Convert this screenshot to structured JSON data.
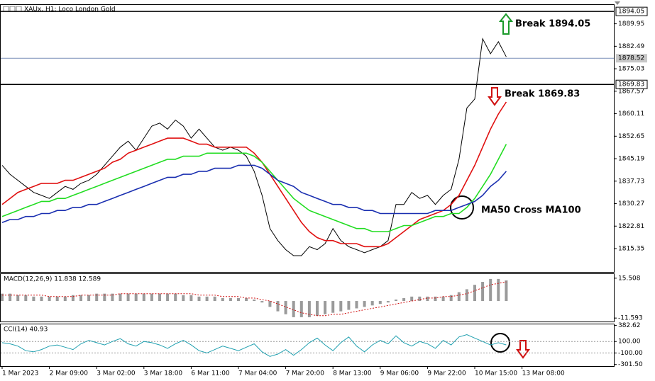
{
  "chart_data": [
    {
      "type": "line",
      "title": "XAUx, H1: Loco London Gold",
      "ylim": [
        1807.6,
        1896.2
      ],
      "yticks": [
        1889.95,
        1882.49,
        1875.03,
        1867.57,
        1860.11,
        1852.65,
        1845.19,
        1837.73,
        1830.27,
        1822.81,
        1815.35
      ],
      "break_levels": [
        1894.05,
        1869.83
      ],
      "last_price": 1878.52,
      "annotations": [
        "Break 1894.05",
        "Break 1869.83",
        "MA50 Cross MA100"
      ],
      "series": [
        {
          "color": "#000000",
          "values": [
            1843,
            1840,
            1838,
            1836,
            1834,
            1833,
            1832,
            1834,
            1836,
            1835,
            1837,
            1838,
            1840,
            1843,
            1846,
            1849,
            1851,
            1848,
            1852,
            1856,
            1857,
            1855,
            1858,
            1856,
            1852,
            1855,
            1852,
            1849,
            1848,
            1849,
            1848,
            1846,
            1841,
            1833,
            1822,
            1818,
            1815,
            1813,
            1813,
            1816,
            1815,
            1817,
            1822,
            1818,
            1816,
            1815,
            1814,
            1815,
            1816,
            1818,
            1830,
            1830,
            1834,
            1832,
            1833,
            1830,
            1833,
            1835,
            1845,
            1862,
            1865,
            1885,
            1880,
            1884,
            1879,
            null,
            null,
            null,
            null,
            null,
            null,
            null
          ]
        },
        {
          "color": "#e01010",
          "values": [
            1830,
            1832,
            1834,
            1835,
            1836,
            1837,
            1837,
            1837,
            1838,
            1838,
            1839,
            1840,
            1841,
            1842,
            1844,
            1845,
            1847,
            1848,
            1849,
            1850,
            1851,
            1852,
            1852,
            1852,
            1851,
            1850,
            1850,
            1849,
            1849,
            1849,
            1849,
            1849,
            1847,
            1844,
            1840,
            1836,
            1832,
            1828,
            1824,
            1821,
            1819,
            1818,
            1818,
            1817,
            1817,
            1817,
            1816,
            1816,
            1816,
            1817,
            1819,
            1821,
            1823,
            1825,
            1826,
            1827,
            1828,
            1830,
            1833,
            1838,
            1843,
            1849,
            1855,
            1860,
            1864,
            null,
            null,
            null,
            null,
            null,
            null,
            null
          ]
        },
        {
          "color": "#22dd22",
          "values": [
            1826,
            1827,
            1828,
            1829,
            1830,
            1831,
            1831,
            1832,
            1832,
            1833,
            1834,
            1835,
            1836,
            1837,
            1838,
            1839,
            1840,
            1841,
            1842,
            1843,
            1844,
            1845,
            1845,
            1846,
            1846,
            1846,
            1847,
            1847,
            1847,
            1847,
            1847,
            1847,
            1846,
            1844,
            1841,
            1838,
            1835,
            1832,
            1830,
            1828,
            1827,
            1826,
            1825,
            1824,
            1823,
            1822,
            1822,
            1821,
            1821,
            1821,
            1822,
            1823,
            1823,
            1824,
            1825,
            1826,
            1826,
            1827,
            1827,
            1829,
            1832,
            1836,
            1840,
            1845,
            1850,
            null,
            null,
            null,
            null,
            null,
            null,
            null
          ]
        },
        {
          "color": "#1a2fb0",
          "values": [
            1824,
            1825,
            1825,
            1826,
            1826,
            1827,
            1827,
            1828,
            1828,
            1829,
            1829,
            1830,
            1830,
            1831,
            1832,
            1833,
            1834,
            1835,
            1836,
            1837,
            1838,
            1839,
            1839,
            1840,
            1840,
            1841,
            1841,
            1842,
            1842,
            1842,
            1843,
            1843,
            1843,
            1842,
            1840,
            1838,
            1837,
            1836,
            1834,
            1833,
            1832,
            1831,
            1830,
            1830,
            1829,
            1829,
            1828,
            1828,
            1827,
            1827,
            1827,
            1827,
            1827,
            1827,
            1827,
            1828,
            1828,
            1828,
            1829,
            1830,
            1831,
            1833,
            1836,
            1838,
            1841,
            null,
            null,
            null,
            null,
            null,
            null,
            null
          ]
        }
      ]
    },
    {
      "type": "bar",
      "title": "MACD(12,26,9) 11.838 12.589",
      "ylim": [
        -13.93,
        18.31
      ],
      "yticks": [
        15.508,
        -11.593
      ],
      "color": "#9a9a9a",
      "signal_color": "#d01010",
      "values": [
        5,
        5,
        4,
        4,
        3,
        3,
        3,
        3,
        3,
        4,
        4,
        4,
        5,
        5,
        5,
        5,
        5,
        5,
        5,
        5,
        5,
        5,
        5,
        4,
        4,
        3,
        3,
        3,
        2,
        2,
        2,
        2,
        1,
        -1,
        -4,
        -7,
        -9,
        -11,
        -11,
        -11,
        -10,
        -9,
        -8,
        -7,
        -6,
        -5,
        -4,
        -3,
        -2,
        -1,
        1,
        2,
        3,
        3,
        3,
        3,
        3,
        4,
        6,
        8,
        11,
        13,
        15,
        15,
        14,
        null,
        null,
        null,
        null,
        null,
        null,
        null
      ],
      "signal": [
        4,
        4,
        4,
        4,
        4,
        4,
        3,
        3,
        3,
        3,
        4,
        4,
        4,
        4,
        4,
        5,
        5,
        5,
        5,
        5,
        5,
        5,
        5,
        5,
        5,
        4,
        4,
        4,
        3,
        3,
        3,
        2,
        2,
        1,
        0,
        -2,
        -4,
        -6,
        -8,
        -9,
        -10,
        -10,
        -9,
        -9,
        -8,
        -7,
        -6,
        -5,
        -4,
        -3,
        -2,
        -1,
        0,
        1,
        2,
        2,
        3,
        3,
        4,
        5,
        7,
        9,
        11,
        12,
        13,
        null,
        null,
        null,
        null,
        null,
        null,
        null
      ]
    },
    {
      "type": "line",
      "title": "CCI(14) 40.93",
      "ylim": [
        -330,
        400
      ],
      "yticks": [
        382.62,
        {
          "value": 100,
          "label": "100.00"
        },
        {
          "value": -100,
          "label": "-100.00"
        },
        {
          "value": -301.5,
          "label": "-301.50"
        }
      ],
      "series": [
        {
          "color": "#20a0b0",
          "values": [
            80,
            60,
            20,
            -60,
            -80,
            -40,
            20,
            40,
            0,
            -40,
            60,
            120,
            80,
            40,
            100,
            150,
            60,
            20,
            100,
            80,
            40,
            -20,
            60,
            120,
            40,
            -60,
            -100,
            -40,
            20,
            -20,
            -60,
            0,
            60,
            -80,
            -160,
            -120,
            -40,
            -140,
            -40,
            80,
            160,
            40,
            -60,
            80,
            180,
            20,
            -80,
            40,
            120,
            60,
            200,
            80,
            20,
            100,
            60,
            -20,
            120,
            40,
            180,
            220,
            160,
            100,
            40,
            80,
            40.93,
            null,
            null,
            null,
            null,
            null,
            null,
            null
          ]
        }
      ],
      "categories": [
        "1 Mar 2023",
        null,
        null,
        null,
        null,
        null,
        "2 Mar 09:00",
        null,
        null,
        null,
        null,
        null,
        "3 Mar 02:00",
        null,
        null,
        null,
        null,
        null,
        "3 Mar 18:00",
        null,
        null,
        null,
        null,
        null,
        "6 Mar 11:00",
        null,
        null,
        null,
        null,
        null,
        "7 Mar 04:00",
        null,
        null,
        null,
        null,
        null,
        "7 Mar 20:00",
        null,
        null,
        null,
        null,
        null,
        "8 Mar 13:00",
        null,
        null,
        null,
        null,
        null,
        "9 Mar 06:00",
        null,
        null,
        null,
        null,
        null,
        "9 Mar 22:00",
        null,
        null,
        null,
        null,
        null,
        "10 Mar 15:00",
        null,
        null,
        null,
        null,
        null,
        "13 Mar 08:00",
        null,
        null,
        null,
        null,
        null
      ]
    }
  ]
}
